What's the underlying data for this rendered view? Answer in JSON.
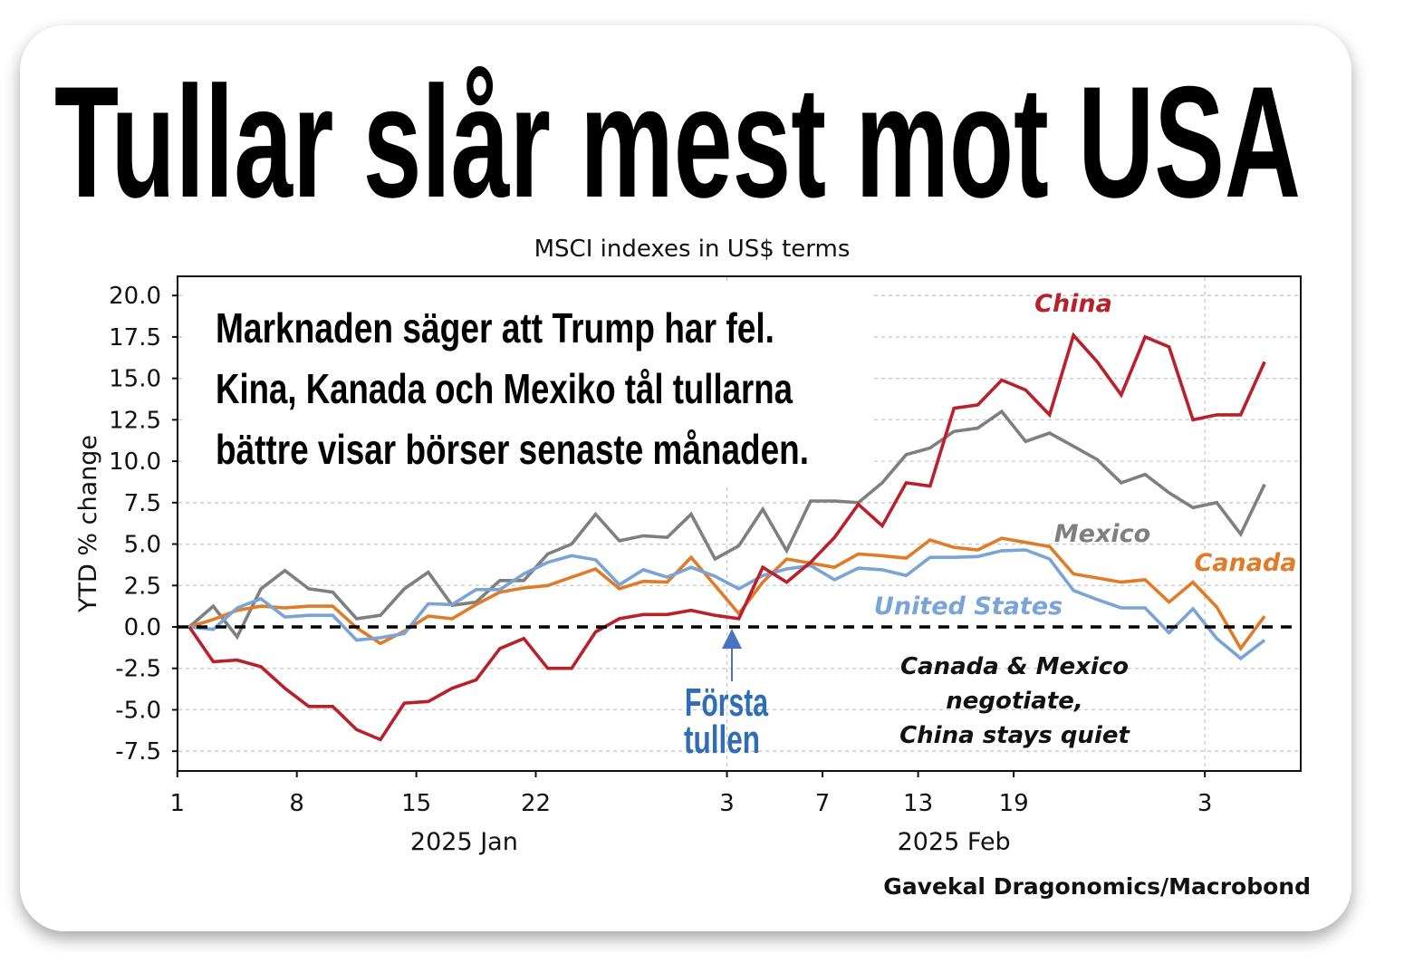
{
  "headline": "Tullar slår mest mot USA",
  "callout_lines": [
    "Marknaden säger att Trump har fel.",
    "Kina, Kanada och Mexiko tål tullarna",
    "bättre visar börser senaste månaden."
  ],
  "event_marker": {
    "line1": "Första",
    "line2": "tullen",
    "color": "#2f6db5"
  },
  "note_lines": [
    "Canada & Mexico",
    "negotiate,",
    "China stays quiet"
  ],
  "source": "Gavekal Dragonomics/Macrobond",
  "chart_data": {
    "type": "line",
    "title": "MSCI indexes in US$ terms",
    "xlabel": "",
    "ylabel": "YTD % change",
    "x_unit": "trading day index (0 = 2 Jan 2025)",
    "ylim": [
      -8.5,
      21.5
    ],
    "yticks": [
      "20.0",
      "17.5",
      "15.0",
      "12.5",
      "10.0",
      "7.5",
      "5.0",
      "2.5",
      "0.0",
      "-2.5",
      "-5.0",
      "-7.5"
    ],
    "ytick_values": [
      20,
      17.5,
      15,
      12.5,
      10,
      7.5,
      5,
      2.5,
      0,
      -2.5,
      -5,
      -7.5
    ],
    "xticks": [
      {
        "label": "1",
        "pos": -0.5
      },
      {
        "label": "8",
        "pos": 4.5
      },
      {
        "label": "15",
        "pos": 9.5
      },
      {
        "label": "22",
        "pos": 14.5
      },
      {
        "label": "3",
        "pos": 22.5
      },
      {
        "label": "7",
        "pos": 26.5
      },
      {
        "label": "13",
        "pos": 30.5
      },
      {
        "label": "19",
        "pos": 34.5
      },
      {
        "label": "3",
        "pos": 42.5
      }
    ],
    "month_labels": [
      {
        "label": "2025 Jan",
        "pos": 11.5
      },
      {
        "label": "2025 Feb",
        "pos": 32.0
      }
    ],
    "grid": true,
    "reference_line": 0,
    "event_index": 22.5,
    "series": [
      {
        "name": "China",
        "color": "#b8202c",
        "values": [
          0,
          -2.1,
          -2.0,
          -2.4,
          -3.7,
          -4.8,
          -4.8,
          -6.2,
          -6.8,
          -4.6,
          -4.5,
          -3.7,
          -3.2,
          -1.3,
          -0.7,
          -2.5,
          -2.5,
          -0.3,
          0.5,
          0.75,
          0.75,
          1.0,
          0.7,
          0.5,
          3.6,
          2.7,
          3.9,
          5.4,
          7.4,
          6.1,
          8.7,
          8.5,
          13.2,
          13.4,
          14.9,
          14.3,
          12.8,
          17.6,
          16.0,
          14.0,
          17.5,
          16.9,
          12.5,
          12.8,
          12.8,
          16.0
        ]
      },
      {
        "name": "Mexico",
        "color": "#7f7f7f",
        "values": [
          0,
          1.25,
          -0.6,
          2.3,
          3.4,
          2.3,
          2.1,
          0.5,
          0.7,
          2.3,
          3.3,
          1.3,
          1.5,
          2.8,
          2.8,
          4.4,
          5.0,
          6.8,
          5.2,
          5.5,
          5.4,
          6.8,
          4.1,
          4.9,
          7.1,
          4.6,
          7.6,
          7.6,
          7.5,
          8.7,
          10.4,
          10.8,
          11.8,
          12.0,
          13.0,
          11.2,
          11.7,
          10.9,
          10.1,
          8.7,
          9.2,
          8.1,
          7.2,
          7.5,
          5.6,
          8.6
        ]
      },
      {
        "name": "Canada",
        "color": "#e07b28",
        "values": [
          0,
          0.45,
          1.0,
          1.25,
          1.15,
          1.25,
          1.25,
          -0.05,
          -1.0,
          -0.25,
          0.65,
          0.5,
          1.35,
          2.1,
          2.35,
          2.5,
          3.0,
          3.5,
          2.3,
          2.75,
          2.7,
          4.2,
          2.5,
          0.8,
          2.7,
          4.1,
          3.85,
          3.6,
          4.4,
          4.3,
          4.15,
          5.25,
          4.8,
          4.65,
          5.35,
          5.1,
          4.85,
          3.2,
          2.95,
          2.7,
          2.85,
          1.5,
          2.7,
          1.2,
          -1.3,
          0.65
        ]
      },
      {
        "name": "United States",
        "color": "#7aa3d6",
        "values": [
          0,
          -0.15,
          1.15,
          1.7,
          0.6,
          0.7,
          0.7,
          -0.8,
          -0.65,
          -0.4,
          1.4,
          1.35,
          2.25,
          2.25,
          3.2,
          3.9,
          4.3,
          4.05,
          2.55,
          3.45,
          3.0,
          3.6,
          3.05,
          2.3,
          3.1,
          3.5,
          3.7,
          2.85,
          3.55,
          3.45,
          3.1,
          4.2,
          4.2,
          4.25,
          4.6,
          4.65,
          4.1,
          2.2,
          1.65,
          1.15,
          1.15,
          -0.35,
          1.1,
          -0.7,
          -1.9,
          -0.8
        ]
      }
    ]
  }
}
